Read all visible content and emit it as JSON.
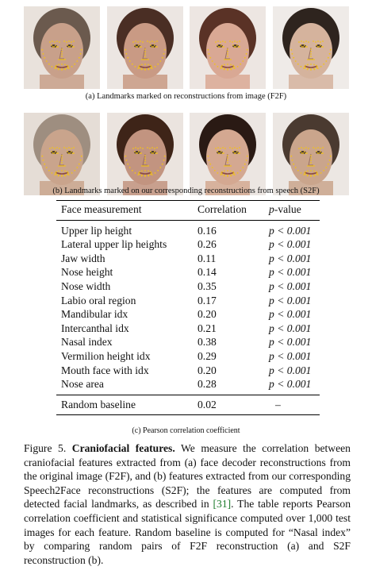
{
  "caption_a": "(a) Landmarks marked on reconstructions from image (F2F)",
  "caption_b": "(b) Landmarks marked on our corresponding reconstructions from speech (S2F)",
  "table": {
    "headers": [
      "Face measurement",
      "Correlation",
      "p-value"
    ],
    "rows": [
      {
        "measurement": "Upper lip height",
        "correlation": "0.16",
        "p": "p < 0.001"
      },
      {
        "measurement": "Lateral upper lip heights",
        "correlation": "0.26",
        "p": "p < 0.001"
      },
      {
        "measurement": "Jaw width",
        "correlation": "0.11",
        "p": "p < 0.001"
      },
      {
        "measurement": "Nose height",
        "correlation": "0.14",
        "p": "p < 0.001"
      },
      {
        "measurement": "Nose width",
        "correlation": "0.35",
        "p": "p < 0.001"
      },
      {
        "measurement": "Labio oral region",
        "correlation": "0.17",
        "p": "p < 0.001"
      },
      {
        "measurement": "Mandibular idx",
        "correlation": "0.20",
        "p": "p < 0.001"
      },
      {
        "measurement": "Intercanthal idx",
        "correlation": "0.21",
        "p": "p < 0.001"
      },
      {
        "measurement": "Nasal index",
        "correlation": "0.38",
        "p": "p < 0.001"
      },
      {
        "measurement": "Vermilion height idx",
        "correlation": "0.29",
        "p": "p < 0.001"
      },
      {
        "measurement": "Mouth face with idx",
        "correlation": "0.20",
        "p": "p < 0.001"
      },
      {
        "measurement": "Nose area",
        "correlation": "0.28",
        "p": "p < 0.001"
      }
    ],
    "baseline": {
      "measurement": "Random baseline",
      "correlation": "0.02",
      "p": "–"
    }
  },
  "caption_c": "(c) Pearson correlation coefficient",
  "figure_caption": {
    "label": "Figure 5.",
    "title": "Craniofacial features.",
    "text_before_ref": " We measure the correlation between craniofacial features extracted from (a) face decoder reconstructions from the original image (F2F), and (b) features extracted from our corresponding Speech2Face reconstructions (S2F); the features are computed from detected facial landmarks, as described in ",
    "ref": "[31]",
    "text_after_ref": ". The table reports Pearson correlation coefficient and statistical significance computed over 1,000 test images for each feature. Random baseline is computed for “Nasal index” by comparing random pairs of F2F reconstruction (a) and S2F reconstruction (b)."
  },
  "faces": {
    "row1": [
      {
        "skin": "#c8a08a",
        "hair": "#6b5a4e",
        "bg": "#e9e2dc"
      },
      {
        "skin": "#c99a84",
        "hair": "#4a2e24",
        "bg": "#ece6e2"
      },
      {
        "skin": "#d9a894",
        "hair": "#5a3226",
        "bg": "#ede6e2"
      },
      {
        "skin": "#d5b39d",
        "hair": "#2e241e",
        "bg": "#efebe8"
      }
    ],
    "row2": [
      {
        "skin": "#c9a48c",
        "hair": "#9e8e80",
        "bg": "#e5ddd6"
      },
      {
        "skin": "#c29480",
        "hair": "#3e2418",
        "bg": "#ebe4df"
      },
      {
        "skin": "#d4a891",
        "hair": "#2a1a14",
        "bg": "#ece6e2"
      },
      {
        "skin": "#caa58c",
        "hair": "#4a3a30",
        "bg": "#ece7e3"
      }
    ]
  }
}
